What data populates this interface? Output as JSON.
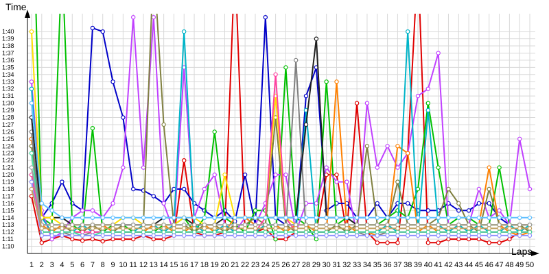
{
  "chart_data": {
    "type": "line",
    "ylabel": "Time",
    "xlabel": "Laps",
    "y_ticks": [
      "1:10",
      "1:11",
      "1:12",
      "1:13",
      "1:14",
      "1:15",
      "1:16",
      "1:17",
      "1:18",
      "1:19",
      "1:20",
      "1:21",
      "1:22",
      "1:23",
      "1:24",
      "1:25",
      "1:26",
      "1:27",
      "1:28",
      "1:29",
      "1:30",
      "1:31",
      "1:32",
      "1:33",
      "1:34",
      "1:35",
      "1:36",
      "1:37",
      "1:38",
      "1:39",
      "1:40"
    ],
    "y_ticks_seconds": [
      70,
      71,
      72,
      73,
      74,
      75,
      76,
      77,
      78,
      79,
      80,
      81,
      82,
      83,
      84,
      85,
      86,
      87,
      88,
      89,
      90,
      91,
      92,
      93,
      94,
      95,
      96,
      97,
      98,
      99,
      100
    ],
    "ylim_seconds": [
      69,
      102.5
    ],
    "x": [
      1,
      2,
      3,
      4,
      5,
      6,
      7,
      8,
      9,
      10,
      11,
      12,
      13,
      14,
      15,
      16,
      17,
      18,
      19,
      20,
      21,
      22,
      23,
      24,
      25,
      26,
      27,
      28,
      29,
      30,
      31,
      32,
      33,
      34,
      35,
      36,
      37,
      38,
      39,
      40,
      41,
      42,
      43,
      44,
      45,
      46,
      47,
      48,
      49,
      50
    ],
    "xlim": [
      1,
      50
    ],
    "grid": true,
    "legend": "none",
    "series": [
      {
        "color": "#e00000",
        "values": [
          77,
          70.5,
          71,
          71.5,
          71,
          70.8,
          71,
          70.7,
          71,
          71,
          71,
          71.5,
          71,
          71,
          71.5,
          82,
          72,
          71.5,
          71.5,
          72,
          110,
          72,
          72,
          72.5,
          71,
          71,
          72,
          72,
          72,
          80,
          80,
          72,
          90,
          72,
          70.5,
          70.5,
          70.5,
          83,
          110,
          70.5,
          70.5,
          71,
          71,
          71,
          71,
          70.5,
          70.5,
          71,
          72,
          72
        ]
      },
      {
        "color": "#0000c8",
        "values": [
          85,
          74,
          76,
          79,
          76,
          75,
          100.5,
          100,
          93,
          88,
          78,
          77.8,
          77,
          76,
          78,
          78,
          76,
          75,
          74,
          75,
          73.5,
          80,
          73,
          102,
          74,
          73,
          73,
          91,
          95,
          75,
          76,
          76,
          74,
          74,
          76,
          74,
          76,
          76,
          75,
          75,
          75,
          76,
          75,
          75,
          76,
          76,
          74,
          73,
          73,
          73
        ]
      },
      {
        "color": "#00c000",
        "values": [
          125,
          74,
          73,
          110,
          73,
          72,
          86.5,
          72,
          73,
          73,
          72,
          72,
          72,
          73,
          73,
          74,
          72,
          74,
          86,
          74,
          73,
          72,
          75,
          75,
          71,
          95,
          74,
          73,
          71,
          93,
          73,
          74,
          73,
          73,
          73,
          74,
          75,
          74,
          78,
          90,
          81,
          73,
          74,
          74,
          73,
          73,
          81,
          73,
          73,
          72
        ]
      },
      {
        "color": "#c040ff",
        "values": [
          93,
          75,
          71,
          72,
          74,
          75,
          75,
          74,
          76,
          81,
          102,
          81,
          102,
          76,
          72,
          95,
          74,
          78,
          80,
          73,
          72,
          74,
          73,
          76,
          80,
          80,
          72,
          76,
          76,
          81,
          79,
          79,
          71.5,
          90,
          81,
          84,
          81,
          83,
          91,
          92,
          97,
          73,
          73,
          73,
          78,
          74,
          75,
          73,
          85,
          78
        ]
      },
      {
        "color": "#ff8000",
        "values": [
          85,
          73,
          72,
          73,
          72,
          72,
          73,
          73,
          72,
          72,
          72,
          72,
          73,
          73,
          72,
          72,
          73,
          73,
          72,
          72,
          74,
          74,
          73,
          73,
          73,
          72,
          73,
          73,
          72,
          72,
          93,
          73,
          72,
          72,
          71.5,
          72,
          84,
          83,
          72,
          73,
          72,
          72,
          72,
          72,
          73,
          81,
          73,
          72,
          71.5,
          72
        ]
      },
      {
        "color": "#00b4c8",
        "values": [
          92,
          74,
          72,
          72,
          72,
          73,
          72,
          72,
          72,
          72,
          72,
          73,
          73,
          72,
          73,
          100,
          73,
          72,
          72,
          73,
          72,
          72,
          72,
          73,
          73,
          73,
          72,
          89,
          72,
          72,
          73,
          72,
          72,
          72,
          72,
          73,
          72,
          100,
          72,
          89,
          73,
          72,
          73,
          72,
          73,
          72,
          72,
          73,
          72,
          73
        ]
      },
      {
        "color": "#808040",
        "values": [
          84,
          73,
          73,
          73,
          72,
          72,
          73,
          72,
          72,
          73,
          73,
          73,
          110,
          87,
          73,
          73,
          72,
          73,
          73,
          72,
          73,
          73,
          74,
          73,
          88,
          73,
          72,
          72,
          72,
          72,
          73,
          72,
          73,
          84,
          73,
          73,
          79,
          73,
          73,
          73,
          74,
          78,
          76,
          73,
          72,
          78,
          73,
          73,
          73,
          72
        ]
      },
      {
        "color": "#808080",
        "values": [
          86,
          72,
          72,
          72,
          71.5,
          71.5,
          72,
          72,
          72,
          72,
          72,
          72,
          72,
          72,
          72,
          72,
          72,
          72,
          72,
          72,
          72,
          72,
          72,
          72,
          72,
          72,
          96,
          72,
          72,
          72,
          72,
          72,
          72,
          71.5,
          71.5,
          72,
          72,
          72,
          72,
          72,
          72,
          72,
          72,
          72,
          72,
          72,
          72,
          72,
          72,
          72
        ]
      },
      {
        "color": "#202020",
        "values": [
          88,
          74,
          74,
          74,
          73,
          73,
          73,
          73,
          73,
          73,
          73,
          73,
          73,
          74,
          74,
          74,
          73,
          73,
          73,
          74,
          74,
          74,
          74,
          74,
          74,
          74,
          74,
          87,
          99,
          74,
          74,
          74,
          73,
          73,
          73,
          73,
          73,
          73,
          73,
          73,
          73,
          73,
          73,
          73,
          73,
          73,
          73,
          73,
          73,
          73
        ]
      },
      {
        "color": "#ffe000",
        "values": [
          100,
          74,
          74,
          73,
          73,
          73,
          73,
          73,
          73,
          74,
          74,
          73,
          73,
          73,
          73,
          74,
          74,
          73,
          73,
          80,
          74,
          74,
          74,
          74,
          91,
          74,
          73,
          73,
          73,
          73,
          73,
          73,
          73,
          73,
          73,
          73,
          73,
          73,
          73,
          73,
          73,
          73,
          73,
          73,
          73,
          73,
          73,
          73,
          73,
          73
        ]
      },
      {
        "color": "#ff40a0",
        "values": [
          80,
          72,
          72,
          72,
          72,
          72,
          72,
          72,
          72,
          72,
          72,
          72,
          72,
          72,
          72,
          72,
          72,
          72,
          72,
          72,
          72,
          72,
          72,
          74,
          94,
          74,
          72,
          72,
          72,
          72,
          72,
          72,
          72,
          72,
          72,
          72,
          72,
          72,
          72,
          72,
          72,
          72,
          72,
          72,
          72,
          72,
          72,
          72,
          72,
          72
        ]
      },
      {
        "color": "#40e0a0",
        "values": [
          83,
          72,
          72,
          72,
          72,
          71.5,
          71.5,
          72,
          72,
          72,
          72,
          72,
          72,
          72,
          72,
          72,
          72,
          72,
          72,
          72,
          72,
          72,
          72,
          72,
          72,
          72,
          72,
          72,
          72,
          72,
          72,
          72,
          72,
          72,
          72,
          72,
          72,
          72,
          72,
          72,
          72,
          72,
          72,
          72,
          72,
          72,
          72,
          72,
          72,
          72
        ]
      },
      {
        "color": "#9090ff",
        "values": [
          79,
          71.5,
          71.5,
          71.5,
          71.5,
          71.5,
          71.5,
          71.5,
          71.5,
          71.5,
          71.5,
          71.5,
          71.5,
          71.5,
          71.5,
          71.5,
          71.5,
          71.5,
          71.5,
          71.5,
          71.5,
          71.5,
          71.5,
          71.5,
          71.5,
          71.5,
          71.5,
          71.5,
          71.5,
          71.5,
          71.5,
          71.5,
          71.5,
          71.5,
          71.5,
          71.5,
          71.5,
          71.5,
          71.5,
          71.5,
          71.5,
          71.5,
          71.5,
          71.5,
          71.5,
          71.5,
          71.5,
          71.5,
          71.5,
          71.5
        ]
      },
      {
        "color": "#a0a0a0",
        "values": [
          81,
          73,
          73,
          73,
          73,
          73,
          73,
          73,
          73,
          73,
          73,
          73,
          73,
          73,
          73,
          73,
          73,
          73,
          73,
          73,
          73,
          73,
          73,
          73,
          73,
          73,
          73,
          73,
          73,
          73,
          73,
          73,
          73,
          73,
          73,
          73,
          73,
          73,
          73,
          73,
          73,
          73,
          73,
          73,
          73,
          73,
          73,
          73,
          73,
          73
        ]
      },
      {
        "color": "#60c0ff",
        "values": [
          90,
          76,
          75,
          74,
          74,
          74,
          74,
          74,
          74,
          74,
          74,
          74,
          74,
          74,
          74,
          74,
          74,
          74,
          74,
          74,
          74,
          74,
          74,
          74,
          74,
          74,
          74,
          74,
          74,
          74,
          74,
          74,
          74,
          74,
          74,
          74,
          74,
          74,
          74,
          74,
          74,
          74,
          74,
          74,
          74,
          74,
          74,
          74,
          74,
          74
        ]
      },
      {
        "color": "#c0a060",
        "values": [
          78,
          72.5,
          72.5,
          72.5,
          72.5,
          72.5,
          72.5,
          72.5,
          72.5,
          72.5,
          72.5,
          72.5,
          72.5,
          72.5,
          72.5,
          72.5,
          72.5,
          72.5,
          72.5,
          72.5,
          72.5,
          72.5,
          72.5,
          72.5,
          72.5,
          72.5,
          72.5,
          72.5,
          72.5,
          72.5,
          72.5,
          72.5,
          72.5,
          72.5,
          72.5,
          72.5,
          72.5,
          72.5,
          72.5,
          72.5,
          72.5,
          72.5,
          72.5,
          72.5,
          72.5,
          72.5,
          72.5,
          72.5,
          72.5,
          72.5
        ]
      }
    ]
  }
}
